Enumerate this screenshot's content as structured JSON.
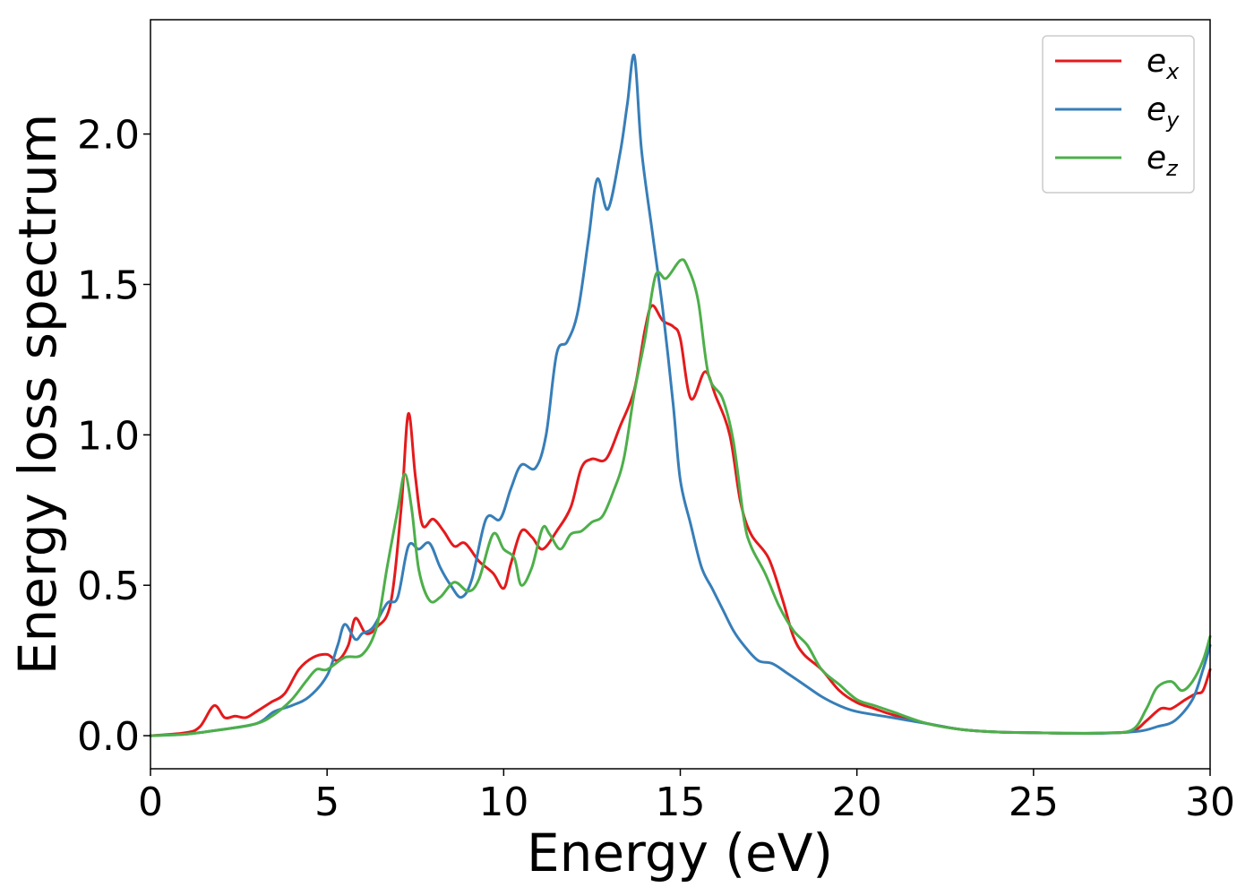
{
  "chart_data": {
    "type": "line",
    "xlabel": "Energy (eV)",
    "ylabel": "Energy loss spectrum",
    "xlim": [
      0,
      30
    ],
    "ylim": [
      -0.11,
      2.38
    ],
    "xticks": [
      0,
      5,
      10,
      15,
      20,
      25,
      30
    ],
    "xtick_labels": [
      "0",
      "5",
      "10",
      "15",
      "20",
      "25",
      "30"
    ],
    "yticks": [
      0.0,
      0.5,
      1.0,
      1.5,
      2.0
    ],
    "ytick_labels": [
      "0.0",
      "0.5",
      "1.0",
      "1.5",
      "2.0"
    ],
    "grid": false,
    "legend_position": "top-right",
    "series": [
      {
        "name": "e",
        "name_sub": "x",
        "color": "#e41a1c",
        "points": [
          [
            0,
            0
          ],
          [
            1,
            0.01
          ],
          [
            1.4,
            0.03
          ],
          [
            1.8,
            0.1
          ],
          [
            2.1,
            0.06
          ],
          [
            2.4,
            0.065
          ],
          [
            2.7,
            0.06
          ],
          [
            3.0,
            0.08
          ],
          [
            3.4,
            0.11
          ],
          [
            3.8,
            0.14
          ],
          [
            4.2,
            0.22
          ],
          [
            4.6,
            0.26
          ],
          [
            5.0,
            0.27
          ],
          [
            5.3,
            0.25
          ],
          [
            5.6,
            0.3
          ],
          [
            5.8,
            0.39
          ],
          [
            6.1,
            0.34
          ],
          [
            6.4,
            0.36
          ],
          [
            6.8,
            0.44
          ],
          [
            7.1,
            0.76
          ],
          [
            7.3,
            1.07
          ],
          [
            7.5,
            0.86
          ],
          [
            7.7,
            0.7
          ],
          [
            8.0,
            0.72
          ],
          [
            8.3,
            0.68
          ],
          [
            8.6,
            0.63
          ],
          [
            8.9,
            0.64
          ],
          [
            9.3,
            0.58
          ],
          [
            9.7,
            0.54
          ],
          [
            10.0,
            0.49
          ],
          [
            10.2,
            0.57
          ],
          [
            10.5,
            0.68
          ],
          [
            10.8,
            0.66
          ],
          [
            11.1,
            0.62
          ],
          [
            11.5,
            0.68
          ],
          [
            11.9,
            0.76
          ],
          [
            12.2,
            0.89
          ],
          [
            12.5,
            0.92
          ],
          [
            12.9,
            0.92
          ],
          [
            13.3,
            1.03
          ],
          [
            13.7,
            1.15
          ],
          [
            14.0,
            1.35
          ],
          [
            14.2,
            1.43
          ],
          [
            14.5,
            1.38
          ],
          [
            14.8,
            1.36
          ],
          [
            15.0,
            1.32
          ],
          [
            15.3,
            1.12
          ],
          [
            15.7,
            1.21
          ],
          [
            16.0,
            1.13
          ],
          [
            16.4,
            1.0
          ],
          [
            16.7,
            0.78
          ],
          [
            17.0,
            0.67
          ],
          [
            17.5,
            0.59
          ],
          [
            17.9,
            0.45
          ],
          [
            18.2,
            0.33
          ],
          [
            18.5,
            0.27
          ],
          [
            19.0,
            0.22
          ],
          [
            19.5,
            0.15
          ],
          [
            20.0,
            0.11
          ],
          [
            20.5,
            0.09
          ],
          [
            21.0,
            0.07
          ],
          [
            22.0,
            0.04
          ],
          [
            23.0,
            0.02
          ],
          [
            24.0,
            0.012
          ],
          [
            25.0,
            0.01
          ],
          [
            26.0,
            0.008
          ],
          [
            27.0,
            0.009
          ],
          [
            27.8,
            0.015
          ],
          [
            28.2,
            0.05
          ],
          [
            28.6,
            0.09
          ],
          [
            28.9,
            0.09
          ],
          [
            29.3,
            0.12
          ],
          [
            29.6,
            0.14
          ],
          [
            29.8,
            0.15
          ],
          [
            30.0,
            0.22
          ]
        ]
      },
      {
        "name": "e",
        "name_sub": "y",
        "color": "#377eb8",
        "points": [
          [
            0,
            0
          ],
          [
            1,
            0.005
          ],
          [
            2,
            0.02
          ],
          [
            3,
            0.04
          ],
          [
            3.5,
            0.08
          ],
          [
            4.0,
            0.1
          ],
          [
            4.5,
            0.13
          ],
          [
            5.0,
            0.2
          ],
          [
            5.3,
            0.3
          ],
          [
            5.5,
            0.37
          ],
          [
            5.8,
            0.32
          ],
          [
            6.0,
            0.34
          ],
          [
            6.3,
            0.36
          ],
          [
            6.7,
            0.44
          ],
          [
            7.0,
            0.46
          ],
          [
            7.3,
            0.63
          ],
          [
            7.6,
            0.62
          ],
          [
            7.9,
            0.64
          ],
          [
            8.2,
            0.56
          ],
          [
            8.5,
            0.5
          ],
          [
            8.8,
            0.46
          ],
          [
            9.1,
            0.52
          ],
          [
            9.5,
            0.72
          ],
          [
            9.9,
            0.72
          ],
          [
            10.2,
            0.82
          ],
          [
            10.5,
            0.9
          ],
          [
            10.9,
            0.89
          ],
          [
            11.2,
            1.0
          ],
          [
            11.5,
            1.27
          ],
          [
            11.8,
            1.31
          ],
          [
            12.1,
            1.41
          ],
          [
            12.4,
            1.65
          ],
          [
            12.65,
            1.85
          ],
          [
            12.95,
            1.75
          ],
          [
            13.3,
            1.94
          ],
          [
            13.5,
            2.1
          ],
          [
            13.7,
            2.26
          ],
          [
            13.9,
            1.95
          ],
          [
            14.2,
            1.68
          ],
          [
            14.5,
            1.42
          ],
          [
            14.8,
            1.1
          ],
          [
            15.0,
            0.85
          ],
          [
            15.3,
            0.7
          ],
          [
            15.6,
            0.56
          ],
          [
            15.9,
            0.49
          ],
          [
            16.2,
            0.42
          ],
          [
            16.5,
            0.35
          ],
          [
            16.8,
            0.3
          ],
          [
            17.2,
            0.25
          ],
          [
            17.6,
            0.24
          ],
          [
            18.0,
            0.21
          ],
          [
            18.5,
            0.17
          ],
          [
            19.0,
            0.13
          ],
          [
            19.5,
            0.1
          ],
          [
            20.0,
            0.08
          ],
          [
            21.0,
            0.06
          ],
          [
            22.0,
            0.04
          ],
          [
            23.0,
            0.02
          ],
          [
            24.0,
            0.012
          ],
          [
            25.0,
            0.01
          ],
          [
            26.0,
            0.008
          ],
          [
            27.0,
            0.008
          ],
          [
            28.0,
            0.015
          ],
          [
            28.5,
            0.03
          ],
          [
            29.0,
            0.05
          ],
          [
            29.5,
            0.12
          ],
          [
            29.8,
            0.22
          ],
          [
            30.0,
            0.3
          ]
        ]
      },
      {
        "name": "e",
        "name_sub": "z",
        "color": "#4daf4a",
        "points": [
          [
            0,
            0
          ],
          [
            1,
            0.005
          ],
          [
            2,
            0.02
          ],
          [
            3,
            0.04
          ],
          [
            3.5,
            0.07
          ],
          [
            4.0,
            0.12
          ],
          [
            4.4,
            0.18
          ],
          [
            4.7,
            0.22
          ],
          [
            5.0,
            0.22
          ],
          [
            5.5,
            0.26
          ],
          [
            6.0,
            0.27
          ],
          [
            6.4,
            0.36
          ],
          [
            6.7,
            0.56
          ],
          [
            7.0,
            0.75
          ],
          [
            7.2,
            0.87
          ],
          [
            7.4,
            0.75
          ],
          [
            7.6,
            0.55
          ],
          [
            7.9,
            0.45
          ],
          [
            8.2,
            0.46
          ],
          [
            8.6,
            0.51
          ],
          [
            9.0,
            0.48
          ],
          [
            9.3,
            0.52
          ],
          [
            9.7,
            0.67
          ],
          [
            10.0,
            0.62
          ],
          [
            10.3,
            0.59
          ],
          [
            10.5,
            0.5
          ],
          [
            10.8,
            0.56
          ],
          [
            11.1,
            0.69
          ],
          [
            11.3,
            0.67
          ],
          [
            11.6,
            0.62
          ],
          [
            11.9,
            0.67
          ],
          [
            12.2,
            0.68
          ],
          [
            12.5,
            0.71
          ],
          [
            12.8,
            0.73
          ],
          [
            13.1,
            0.81
          ],
          [
            13.4,
            0.92
          ],
          [
            13.7,
            1.14
          ],
          [
            14.0,
            1.32
          ],
          [
            14.3,
            1.53
          ],
          [
            14.6,
            1.52
          ],
          [
            15.0,
            1.58
          ],
          [
            15.2,
            1.56
          ],
          [
            15.5,
            1.45
          ],
          [
            15.8,
            1.2
          ],
          [
            16.2,
            1.12
          ],
          [
            16.5,
            0.98
          ],
          [
            16.8,
            0.72
          ],
          [
            17.0,
            0.63
          ],
          [
            17.4,
            0.54
          ],
          [
            17.8,
            0.43
          ],
          [
            18.2,
            0.35
          ],
          [
            18.6,
            0.3
          ],
          [
            19.0,
            0.22
          ],
          [
            19.5,
            0.17
          ],
          [
            20.0,
            0.12
          ],
          [
            20.5,
            0.1
          ],
          [
            21.0,
            0.08
          ],
          [
            22.0,
            0.04
          ],
          [
            23.0,
            0.02
          ],
          [
            24.0,
            0.012
          ],
          [
            25.0,
            0.01
          ],
          [
            26.0,
            0.008
          ],
          [
            27.0,
            0.009
          ],
          [
            27.8,
            0.02
          ],
          [
            28.2,
            0.09
          ],
          [
            28.5,
            0.16
          ],
          [
            28.9,
            0.18
          ],
          [
            29.2,
            0.15
          ],
          [
            29.5,
            0.18
          ],
          [
            29.8,
            0.25
          ],
          [
            30.0,
            0.33
          ]
        ]
      }
    ]
  }
}
